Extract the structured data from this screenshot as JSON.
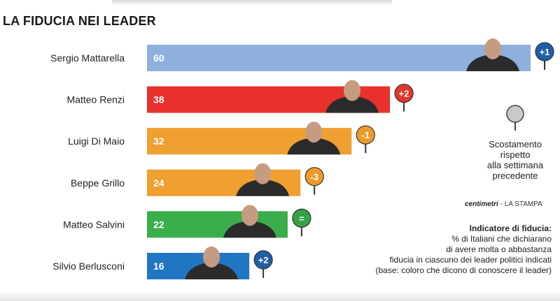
{
  "title": "LA FIDUCIA NEI LEADER",
  "chart_data": {
    "type": "bar",
    "orientation": "horizontal",
    "categories": [
      "Sergio Mattarella",
      "Matteo Renzi",
      "Luigi Di Maio",
      "Beppe Grillo",
      "Matteo Salvini",
      "Silvio Berlusconi"
    ],
    "values": [
      60,
      38,
      32,
      24,
      22,
      16
    ],
    "changes": [
      "+1",
      "+2",
      "-1",
      "-3",
      "=",
      "+2"
    ],
    "bar_colors": [
      "#8fb0dc",
      "#e8312d",
      "#f0a030",
      "#f0a030",
      "#3aae4a",
      "#2176c3"
    ],
    "change_colors": [
      "#1e5fa8",
      "#e2362c",
      "#ee9a2b",
      "#ee9a2b",
      "#32a346",
      "#1e5fa8"
    ],
    "xlim": [
      0,
      60
    ],
    "grid": false,
    "legend": "right"
  },
  "legend": {
    "line1": "Scostamento",
    "line2": "rispetto",
    "line3": "alla settimana",
    "line4": "precedente"
  },
  "brand": {
    "logo": "centimetri",
    "separator": "-",
    "source": "LA STAMPA"
  },
  "note": {
    "title": "Indicatore di fiducia:",
    "line1": "% di Italiani che dichiarano",
    "line2": "di avere molta o abbastanza",
    "line3": "fiducia in ciascuno dei leader politici indicati",
    "line4": "(base: coloro che dicono di conoscere il leader)"
  }
}
